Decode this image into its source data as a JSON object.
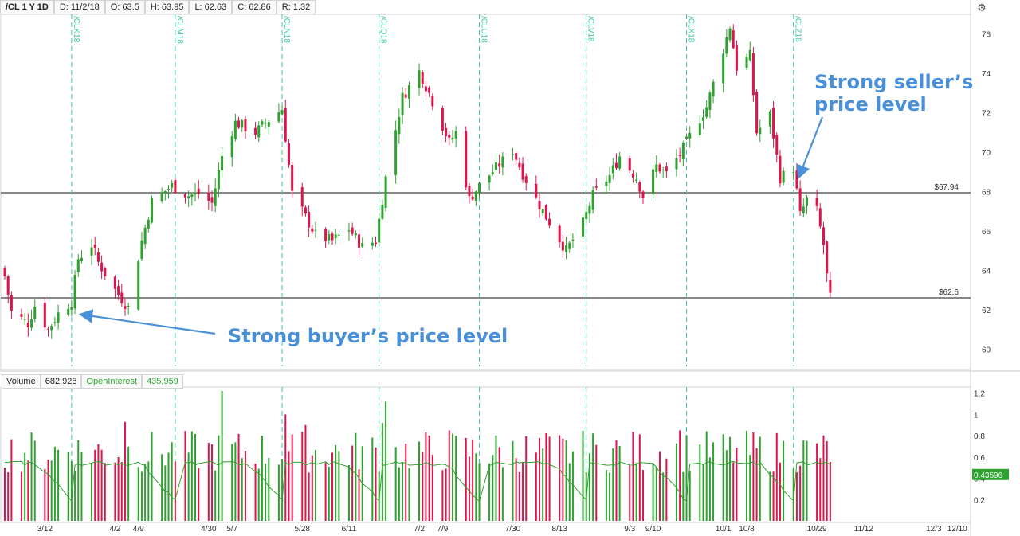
{
  "toolbar": {
    "symbol": "/CL 1 Y 1D",
    "date": "D: 11/2/18",
    "open": "O: 63.5",
    "high": "H: 63.95",
    "low": "L: 62.63",
    "close": "C: 62.86",
    "range": "R: 1.32"
  },
  "volume_header": {
    "volume_label": "Volume",
    "volume_value": "682,928",
    "oi_label": "OpenInterest",
    "oi_value": "435,959"
  },
  "annotations": {
    "seller": "Strong seller’s price level",
    "buyer": "Strong buyer’s price level"
  },
  "colors": {
    "up": "#2ea22e",
    "down": "#e0144c",
    "roll_line": "#3cc9a8",
    "annotation": "#4a90d9",
    "oi_badge": "#2ea22e"
  },
  "icons": {
    "settings": "settings-icon"
  },
  "chart_data": [
    {
      "type": "candlestick",
      "title": "/CL 1 Y 1D",
      "ylim": [
        59,
        77
      ],
      "yticks": [
        60,
        62,
        64,
        66,
        68,
        70,
        72,
        74,
        76
      ],
      "ytick_labels": [
        "60",
        "62",
        "64",
        "66",
        "68",
        "70",
        "72",
        "74",
        "76"
      ],
      "hlines": [
        {
          "value": 67.94,
          "label": "$67.94"
        },
        {
          "value": 62.6,
          "label": "$62.6"
        }
      ],
      "contract_rolls": [
        "/CLK18",
        "/CLM18",
        "/CLN18",
        "/CLQ18",
        "/CLU18",
        "/CLV18",
        "/CLX18",
        "/CLZ18"
      ],
      "roll_dates": [
        "2018-03-20",
        "2018-04-20",
        "2018-05-22",
        "2018-06-20",
        "2018-07-20",
        "2018-08-21",
        "2018-09-20",
        "2018-10-22"
      ],
      "x_range": [
        "2018-02-28",
        "2018-12-14"
      ],
      "xtick_labels": [
        "3/12",
        "4/2",
        "4/9",
        "4/30",
        "5/7",
        "5/28",
        "6/11",
        "7/2",
        "7/9",
        "7/30",
        "8/13",
        "9/3",
        "9/10",
        "10/1",
        "10/8",
        "10/29",
        "11/12",
        "12/3",
        "12/10"
      ],
      "xtick_dates": [
        "2018-03-12",
        "2018-04-02",
        "2018-04-09",
        "2018-04-30",
        "2018-05-07",
        "2018-05-28",
        "2018-06-11",
        "2018-07-02",
        "2018-07-09",
        "2018-07-30",
        "2018-08-13",
        "2018-09-03",
        "2018-09-10",
        "2018-10-01",
        "2018-10-08",
        "2018-10-29",
        "2018-11-12",
        "2018-12-03",
        "2018-12-10"
      ],
      "close_anchors": [
        [
          "2018-02-28",
          63.7
        ],
        [
          "2018-03-02",
          61.9
        ],
        [
          "2018-03-07",
          61.3
        ],
        [
          "2018-03-09",
          62.2
        ],
        [
          "2018-03-13",
          61.0
        ],
        [
          "2018-03-16",
          61.8
        ],
        [
          "2018-03-20",
          62.4
        ],
        [
          "2018-03-22",
          64.6
        ],
        [
          "2018-03-26",
          65.3
        ],
        [
          "2018-03-28",
          64.4
        ],
        [
          "2018-04-02",
          63.0
        ],
        [
          "2018-04-06",
          62.1
        ],
        [
          "2018-04-10",
          65.5
        ],
        [
          "2018-04-13",
          67.5
        ],
        [
          "2018-04-19",
          68.3
        ],
        [
          "2018-04-24",
          67.8
        ],
        [
          "2018-04-27",
          67.9
        ],
        [
          "2018-05-01",
          67.4
        ],
        [
          "2018-05-04",
          69.8
        ],
        [
          "2018-05-08",
          71.5
        ],
        [
          "2018-05-14",
          71.0
        ],
        [
          "2018-05-17",
          71.5
        ],
        [
          "2018-05-22",
          72.2
        ],
        [
          "2018-05-25",
          67.9
        ],
        [
          "2018-05-29",
          66.7
        ],
        [
          "2018-06-01",
          65.8
        ],
        [
          "2018-06-06",
          65.5
        ],
        [
          "2018-06-11",
          66.1
        ],
        [
          "2018-06-15",
          65.2
        ],
        [
          "2018-06-19",
          65.5
        ],
        [
          "2018-06-22",
          68.7
        ],
        [
          "2018-06-27",
          72.8
        ],
        [
          "2018-07-02",
          74.1
        ],
        [
          "2018-07-05",
          73.0
        ],
        [
          "2018-07-11",
          70.5
        ],
        [
          "2018-07-13",
          71.0
        ],
        [
          "2018-07-17",
          67.6
        ],
        [
          "2018-07-20",
          68.3
        ],
        [
          "2018-07-25",
          69.2
        ],
        [
          "2018-07-30",
          70.1
        ],
        [
          "2018-08-02",
          68.9
        ],
        [
          "2018-08-08",
          67.0
        ],
        [
          "2018-08-15",
          65.0
        ],
        [
          "2018-08-20",
          66.4
        ],
        [
          "2018-08-23",
          67.8
        ],
        [
          "2018-08-28",
          68.8
        ],
        [
          "2018-08-31",
          69.8
        ],
        [
          "2018-09-05",
          68.7
        ],
        [
          "2018-09-07",
          67.8
        ],
        [
          "2018-09-11",
          69.3
        ],
        [
          "2018-09-14",
          68.9
        ],
        [
          "2018-09-18",
          69.9
        ],
        [
          "2018-09-21",
          70.8
        ],
        [
          "2018-09-26",
          72.3
        ],
        [
          "2018-10-03",
          76.4
        ],
        [
          "2018-10-05",
          74.3
        ],
        [
          "2018-10-09",
          74.9
        ],
        [
          "2018-10-11",
          71.0
        ],
        [
          "2018-10-15",
          71.9
        ],
        [
          "2018-10-18",
          68.7
        ],
        [
          "2018-10-22",
          69.2
        ],
        [
          "2018-10-24",
          66.8
        ],
        [
          "2018-10-26",
          67.6
        ],
        [
          "2018-10-29",
          67.0
        ],
        [
          "2018-10-31",
          65.3
        ],
        [
          "2018-11-01",
          63.7
        ],
        [
          "2018-11-02",
          62.86
        ]
      ],
      "last_bar": {
        "date": "2018-11-02",
        "open": 63.5,
        "high": 63.95,
        "low": 62.63,
        "close": 62.86
      }
    },
    {
      "type": "bar",
      "title": "Volume",
      "ylim": [
        0,
        1.25
      ],
      "yticks": [
        0.2,
        0.4,
        0.6,
        0.8,
        1,
        1.2
      ],
      "ytick_labels": [
        "0.2",
        "0.4",
        "0.6",
        "0.8",
        "1",
        "1.2"
      ],
      "volume_range": [
        0.45,
        0.85
      ],
      "volume_spikes": [
        [
          "2018-05-04",
          1.22
        ],
        [
          "2018-06-22",
          1.12
        ],
        [
          "2018-05-23",
          1.0
        ],
        [
          "2018-06-21",
          0.92
        ],
        [
          "2018-04-05",
          0.93
        ],
        [
          "2018-05-29",
          0.9
        ],
        [
          "2018-07-11",
          0.85
        ],
        [
          "2018-09-18",
          0.85
        ]
      ],
      "open_interest_level": [
        0.45,
        0.6
      ],
      "open_interest_current": "0.43596"
    }
  ]
}
